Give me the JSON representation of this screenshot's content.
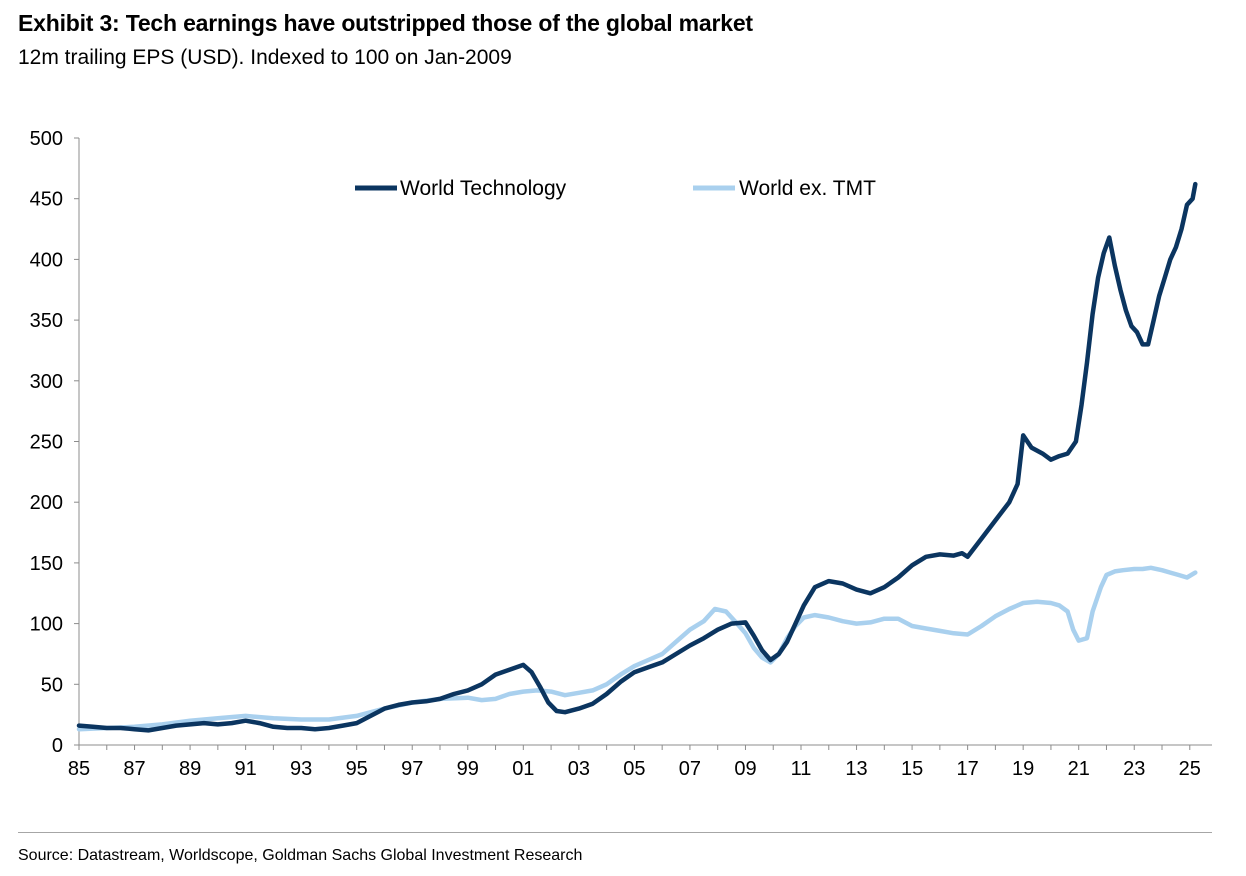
{
  "header": {
    "title": "Exhibit 3: Tech earnings have outstripped those of the global market",
    "subtitle": "12m trailing EPS (USD). Indexed to 100 on Jan-2009"
  },
  "footer": {
    "source": "Source: Datastream, Worldscope, Goldman Sachs Global Investment Research"
  },
  "chart_data": {
    "type": "line",
    "title": "Exhibit 3: Tech earnings have outstripped those of the global market",
    "subtitle": "12m trailing EPS (USD). Indexed to 100 on Jan-2009",
    "xlim": [
      1985,
      2025.8
    ],
    "ylim": [
      0,
      500
    ],
    "x_ticks": [
      1985,
      1987,
      1989,
      1991,
      1993,
      1995,
      1997,
      1999,
      2001,
      2003,
      2005,
      2007,
      2009,
      2011,
      2013,
      2015,
      2017,
      2019,
      2021,
      2023,
      2025
    ],
    "x_tick_labels": [
      "85",
      "87",
      "89",
      "91",
      "93",
      "95",
      "97",
      "99",
      "01",
      "03",
      "05",
      "07",
      "09",
      "11",
      "13",
      "15",
      "17",
      "19",
      "21",
      "23",
      "25"
    ],
    "y_ticks": [
      0,
      50,
      100,
      150,
      200,
      250,
      300,
      350,
      400,
      450,
      500
    ],
    "y_tick_labels": [
      "0",
      "50",
      "100",
      "150",
      "200",
      "250",
      "300",
      "350",
      "400",
      "450",
      "500"
    ],
    "grid": false,
    "legend": {
      "placement": "top-center",
      "orientation": "horizontal"
    },
    "series": [
      {
        "name": "World Technology",
        "color": "#0b3560",
        "x": [
          1985.0,
          1985.5,
          1986.0,
          1986.5,
          1987.0,
          1987.5,
          1988.0,
          1988.5,
          1989.0,
          1989.5,
          1990.0,
          1990.5,
          1991.0,
          1991.5,
          1992.0,
          1992.5,
          1993.0,
          1993.5,
          1994.0,
          1994.5,
          1995.0,
          1995.5,
          1996.0,
          1996.5,
          1997.0,
          1997.5,
          1998.0,
          1998.5,
          1999.0,
          1999.5,
          2000.0,
          2000.5,
          2001.0,
          2001.3,
          2001.6,
          2001.9,
          2002.2,
          2002.5,
          2003.0,
          2003.5,
          2004.0,
          2004.5,
          2005.0,
          2005.5,
          2006.0,
          2006.5,
          2007.0,
          2007.5,
          2008.0,
          2008.5,
          2009.0,
          2009.3,
          2009.6,
          2009.9,
          2010.2,
          2010.5,
          2010.8,
          2011.1,
          2011.5,
          2012.0,
          2012.5,
          2013.0,
          2013.5,
          2014.0,
          2014.5,
          2015.0,
          2015.5,
          2016.0,
          2016.5,
          2016.8,
          2017.0,
          2017.5,
          2018.0,
          2018.5,
          2018.8,
          2019.0,
          2019.3,
          2019.7,
          2020.0,
          2020.3,
          2020.6,
          2020.9,
          2021.1,
          2021.3,
          2021.5,
          2021.7,
          2021.9,
          2022.1,
          2022.3,
          2022.5,
          2022.7,
          2022.9,
          2023.1,
          2023.3,
          2023.5,
          2023.7,
          2023.9,
          2024.1,
          2024.3,
          2024.5,
          2024.7,
          2024.9,
          2025.1,
          2025.2
        ],
        "values": [
          16,
          15,
          14,
          14,
          13,
          12,
          14,
          16,
          17,
          18,
          17,
          18,
          20,
          18,
          15,
          14,
          14,
          13,
          14,
          16,
          18,
          24,
          30,
          33,
          35,
          36,
          38,
          42,
          45,
          50,
          58,
          62,
          66,
          60,
          48,
          35,
          28,
          27,
          30,
          34,
          42,
          52,
          60,
          64,
          68,
          75,
          82,
          88,
          95,
          100,
          101,
          90,
          78,
          70,
          75,
          85,
          100,
          115,
          130,
          135,
          133,
          128,
          125,
          130,
          138,
          148,
          155,
          157,
          156,
          158,
          155,
          170,
          185,
          200,
          215,
          255,
          245,
          240,
          235,
          238,
          240,
          250,
          280,
          315,
          355,
          385,
          405,
          418,
          395,
          375,
          358,
          345,
          340,
          330,
          330,
          350,
          370,
          385,
          400,
          410,
          425,
          445,
          450,
          462
        ]
      },
      {
        "name": "World ex. TMT",
        "color": "#a9d0ee",
        "x": [
          1985.0,
          1986.0,
          1987.0,
          1988.0,
          1989.0,
          1990.0,
          1991.0,
          1992.0,
          1993.0,
          1994.0,
          1995.0,
          1996.0,
          1997.0,
          1998.0,
          1999.0,
          1999.5,
          2000.0,
          2000.5,
          2001.0,
          2001.5,
          2002.0,
          2002.5,
          2003.0,
          2003.5,
          2004.0,
          2004.5,
          2005.0,
          2005.5,
          2006.0,
          2006.5,
          2007.0,
          2007.5,
          2007.9,
          2008.3,
          2008.7,
          2009.0,
          2009.3,
          2009.6,
          2009.9,
          2010.2,
          2010.5,
          2010.8,
          2011.1,
          2011.5,
          2012.0,
          2012.5,
          2013.0,
          2013.5,
          2014.0,
          2014.5,
          2015.0,
          2015.5,
          2016.0,
          2016.5,
          2017.0,
          2017.5,
          2018.0,
          2018.5,
          2019.0,
          2019.5,
          2020.0,
          2020.3,
          2020.6,
          2020.8,
          2021.0,
          2021.3,
          2021.5,
          2021.8,
          2022.0,
          2022.3,
          2022.6,
          2023.0,
          2023.3,
          2023.6,
          2024.0,
          2024.3,
          2024.6,
          2024.9,
          2025.2
        ],
        "values": [
          13,
          14,
          15,
          17,
          20,
          22,
          24,
          22,
          21,
          21,
          24,
          30,
          35,
          38,
          39,
          37,
          38,
          42,
          44,
          45,
          44,
          41,
          43,
          45,
          50,
          58,
          65,
          70,
          75,
          85,
          95,
          102,
          112,
          110,
          100,
          92,
          80,
          72,
          68,
          75,
          88,
          98,
          105,
          107,
          105,
          102,
          100,
          101,
          104,
          104,
          98,
          96,
          94,
          92,
          91,
          98,
          106,
          112,
          117,
          118,
          117,
          115,
          110,
          95,
          86,
          88,
          110,
          130,
          140,
          143,
          144,
          145,
          145,
          146,
          144,
          142,
          140,
          138,
          142
        ]
      }
    ]
  }
}
